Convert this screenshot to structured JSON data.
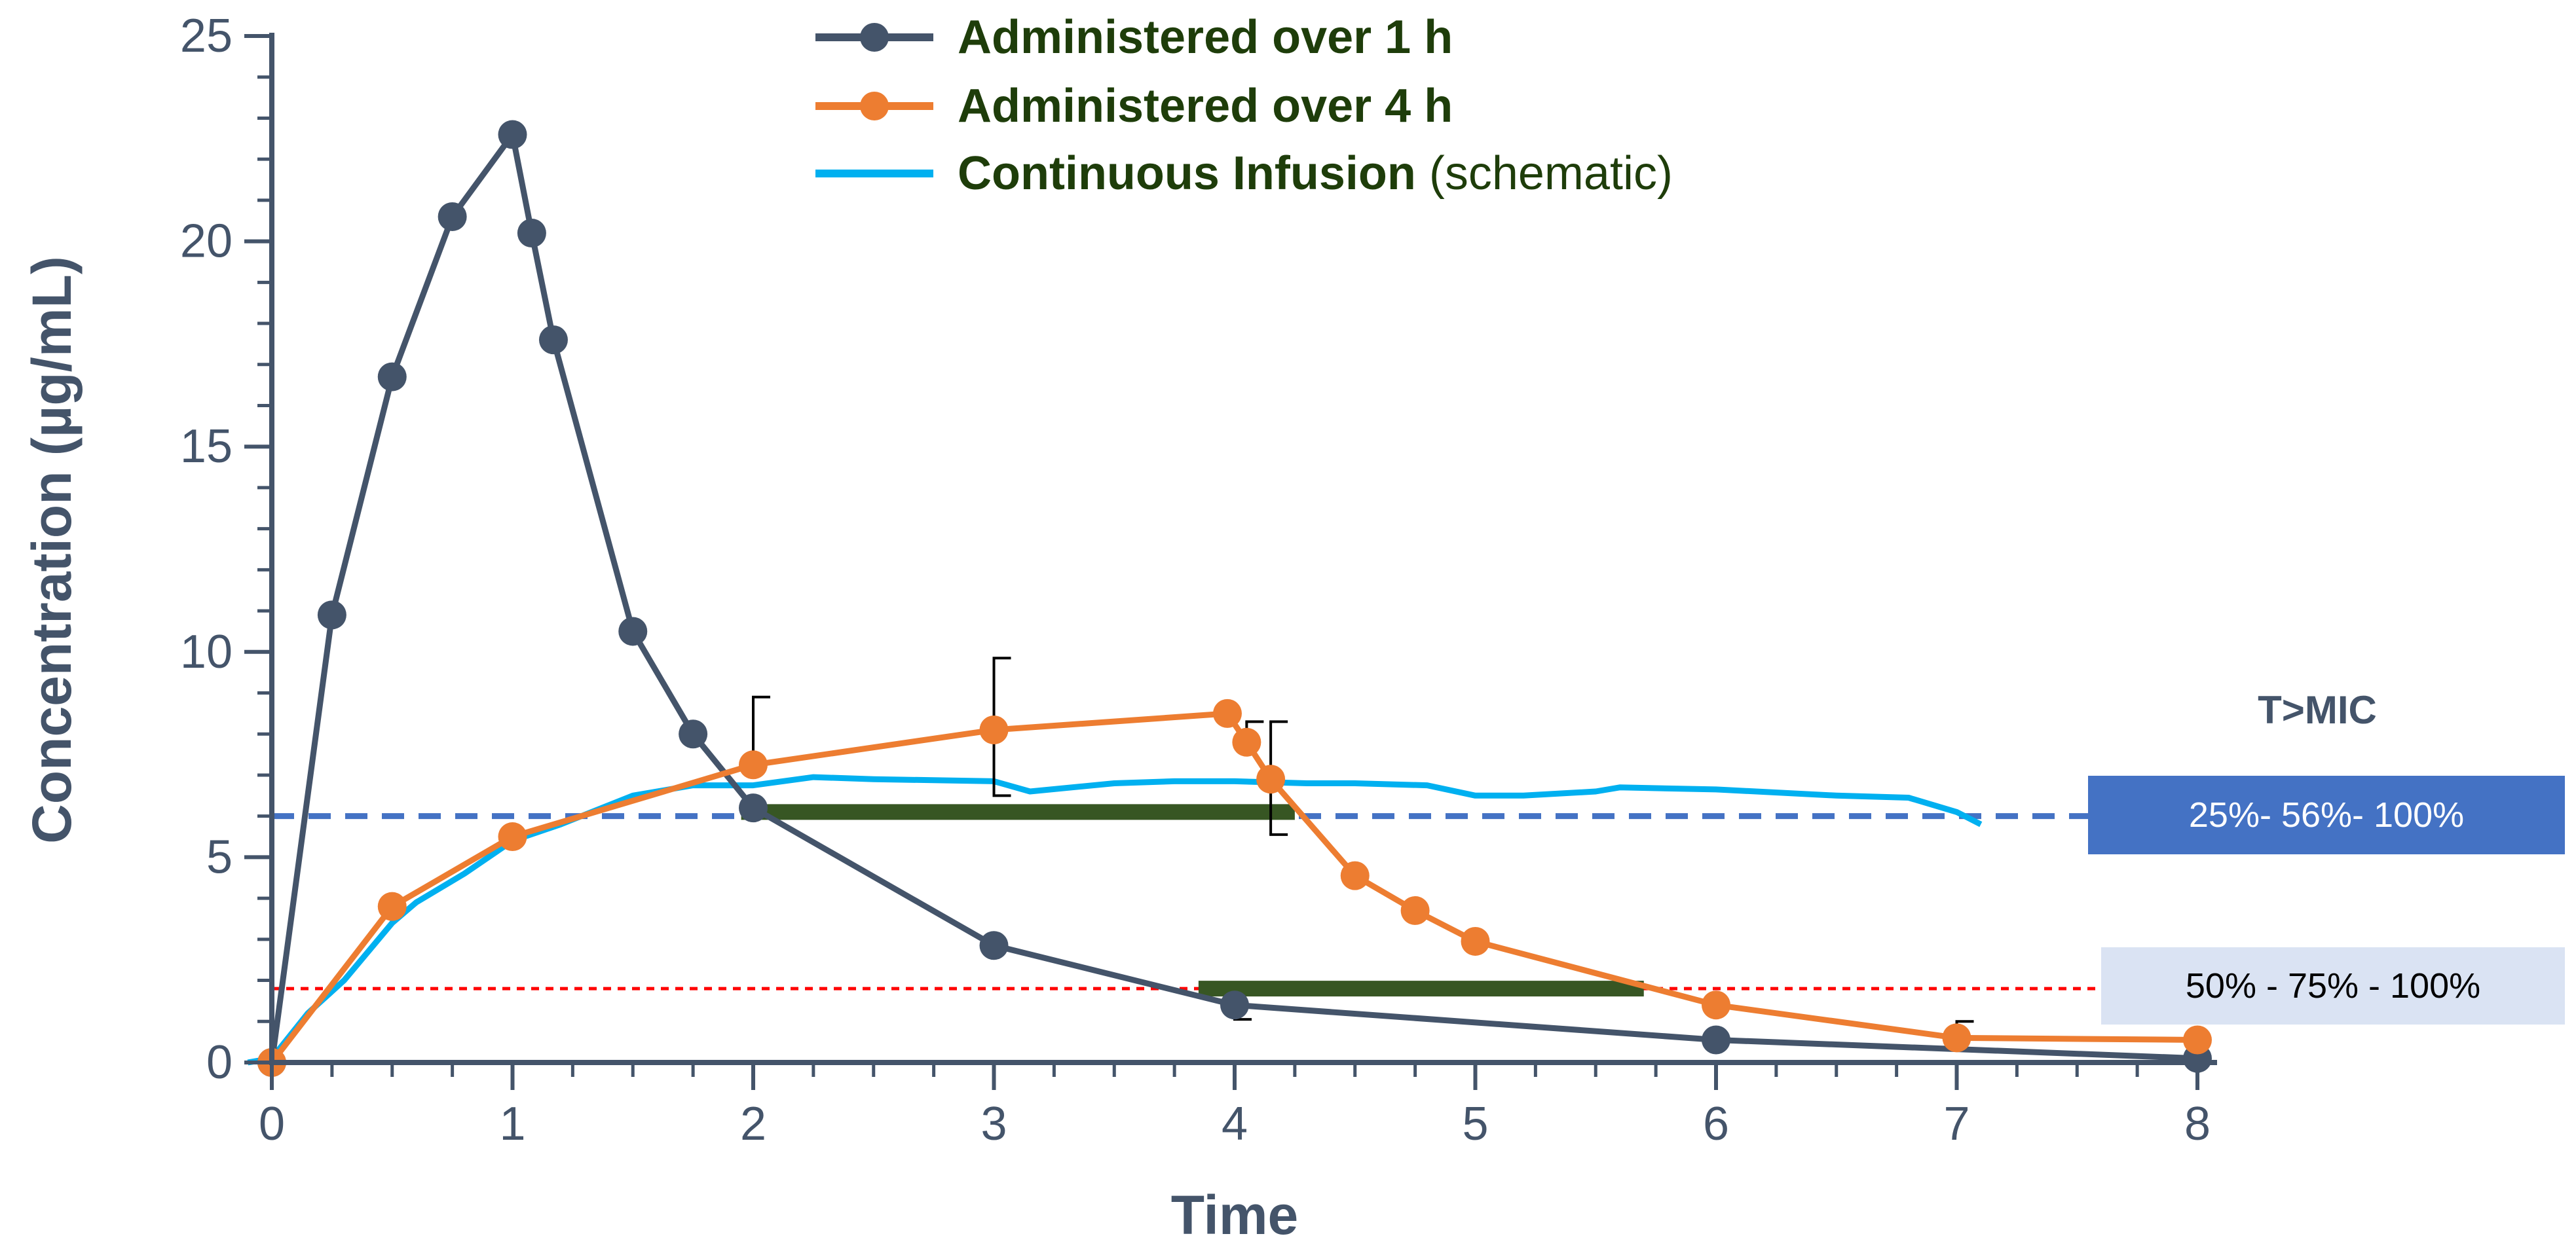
{
  "chart_data": {
    "type": "line",
    "title": "",
    "xlabel": "Time",
    "ylabel": "Concentration (µg/mL)",
    "xlim": [
      0,
      8
    ],
    "ylim": [
      0,
      25
    ],
    "x_ticks": [
      0,
      1,
      2,
      3,
      4,
      5,
      6,
      7,
      8
    ],
    "y_ticks": [
      0,
      5,
      10,
      15,
      20,
      25
    ],
    "x_tick_labels": [
      "0",
      "1",
      "2",
      "3",
      "4",
      "5",
      "6",
      "7",
      "8"
    ],
    "y_tick_labels": [
      "0",
      "5",
      "10",
      "15",
      "20",
      "25"
    ],
    "legend_position": "top-center",
    "series": [
      {
        "name": "Administered over 1 h",
        "legend_bold": "Administered over 1 h",
        "legend_suffix": "",
        "color": "#44546a",
        "marker": "circle",
        "x": [
          0,
          0.25,
          0.5,
          0.75,
          1.0,
          1.08,
          1.17,
          1.5,
          1.75,
          2.0,
          3.0,
          4.0,
          6.0,
          8.0
        ],
        "y": [
          0,
          10.9,
          16.7,
          20.6,
          22.6,
          20.2,
          17.6,
          10.5,
          8.0,
          6.2,
          2.85,
          1.4,
          0.55,
          0.1
        ],
        "errors": [
          {
            "x": 4.0,
            "lower": 1.05,
            "upper": 1.4
          }
        ]
      },
      {
        "name": "Administered over 4 h",
        "legend_bold": "Administered over 4 h",
        "legend_suffix": "",
        "color": "#ed7d31",
        "marker": "circle",
        "x": [
          0,
          0.5,
          1.0,
          2.0,
          3.0,
          3.97,
          4.05,
          4.15,
          4.5,
          4.75,
          5.0,
          6.0,
          7.0,
          8.0
        ],
        "y": [
          0,
          3.8,
          5.5,
          7.25,
          8.1,
          8.5,
          7.8,
          6.9,
          4.55,
          3.7,
          2.95,
          1.4,
          0.6,
          0.55
        ],
        "errors": [
          {
            "x": 2.0,
            "lower": 7.25,
            "upper": 8.9
          },
          {
            "x": 3.0,
            "lower": 6.5,
            "upper": 9.85
          },
          {
            "x": 4.05,
            "lower": 7.8,
            "upper": 8.3
          },
          {
            "x": 4.15,
            "lower": 5.55,
            "upper": 8.3
          },
          {
            "x": 7.0,
            "lower": 0.6,
            "upper": 1.0
          }
        ]
      },
      {
        "name": "Continuous Infusion (schematic)",
        "legend_bold": "Continuous Infusion",
        "legend_suffix": " (schematic)",
        "color": "#00b0f0",
        "marker": "none",
        "x": [
          -0.1,
          0,
          0.15,
          0.3,
          0.5,
          0.6,
          0.8,
          1.0,
          1.2,
          1.5,
          1.75,
          2.0,
          2.25,
          2.5,
          3.0,
          3.15,
          3.5,
          3.75,
          4.0,
          4.3,
          4.5,
          4.8,
          5.0,
          5.2,
          5.5,
          5.6,
          6.0,
          6.5,
          6.8,
          7.0,
          7.1
        ],
        "y": [
          0,
          0.1,
          1.2,
          2.0,
          3.4,
          3.9,
          4.6,
          5.4,
          5.8,
          6.5,
          6.75,
          6.75,
          6.95,
          6.9,
          6.85,
          6.6,
          6.8,
          6.85,
          6.85,
          6.8,
          6.8,
          6.75,
          6.5,
          6.5,
          6.6,
          6.7,
          6.65,
          6.5,
          6.45,
          6.1,
          5.8
        ]
      }
    ],
    "reference_lines": [
      {
        "name": "MIC high",
        "y": 6.0,
        "color": "#4472c4",
        "style": "dashed"
      },
      {
        "name": "MIC low",
        "y": 1.8,
        "color": "#ff0000",
        "style": "dotted"
      }
    ],
    "t_gt_mic_bars": [
      {
        "y": 6.1,
        "x_start": 1.95,
        "x_end": 4.25,
        "color": "#375623"
      },
      {
        "y": 1.8,
        "x_start": 3.85,
        "x_end": 5.7,
        "color": "#375623"
      }
    ],
    "annotations": {
      "t_mic_title": "T>MIC",
      "high_mic_label": "25%- 56%- 100%",
      "low_mic_label": "50% - 75% - 100%",
      "high_mic_box_color": "#4472c4",
      "low_mic_box_color": "#dae3f3"
    }
  }
}
